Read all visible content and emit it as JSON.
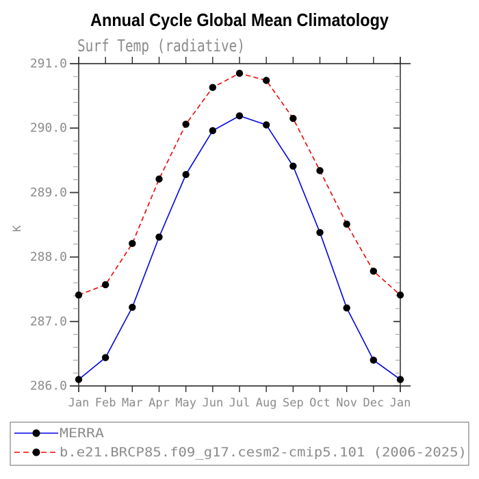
{
  "title": "Annual Cycle Global Mean Climatology",
  "chart_data": {
    "type": "line",
    "title": "Annual Cycle Global Mean Climatology",
    "subtitle": "Surf Temp (radiative)",
    "ylabel": "K",
    "xlabel": "",
    "categories": [
      "Jan",
      "Feb",
      "Mar",
      "Apr",
      "May",
      "Jun",
      "Jul",
      "Aug",
      "Sep",
      "Oct",
      "Nov",
      "Dec",
      "Jan"
    ],
    "y_tick_labels": [
      "291.0",
      "290.0",
      "289.0",
      "288.0",
      "287.0",
      "286.0"
    ],
    "ylim": [
      286.0,
      291.0
    ],
    "ytick_major": 1.0,
    "ytick_minor": 0.2,
    "grid": false,
    "legend_position": "bottom",
    "marker": {
      "shape": "filled-circle",
      "color": "#000000"
    },
    "series": [
      {
        "name": "MERRA",
        "color": "#0000e6",
        "line_style": "solid",
        "values": [
          286.1,
          286.44,
          287.22,
          288.31,
          289.28,
          289.96,
          290.19,
          290.05,
          289.41,
          288.38,
          287.21,
          286.4,
          286.1
        ]
      },
      {
        "name": "b.e21.BRCP85.f09_g17.cesm2-cmip5.101 (2006-2025)",
        "color": "#f00000",
        "line_style": "dashed",
        "values": [
          287.41,
          287.57,
          288.21,
          289.21,
          290.06,
          290.63,
          290.85,
          290.74,
          290.15,
          289.34,
          288.51,
          287.78,
          287.41
        ]
      }
    ]
  },
  "colors": {
    "frame": "#1a1a1a",
    "major_tick": "#3a3a3a",
    "minor_tick": "#9a9a9a",
    "text_gray": "#8b8b8b",
    "background": "#ffffff",
    "legend_border": "#828282"
  }
}
